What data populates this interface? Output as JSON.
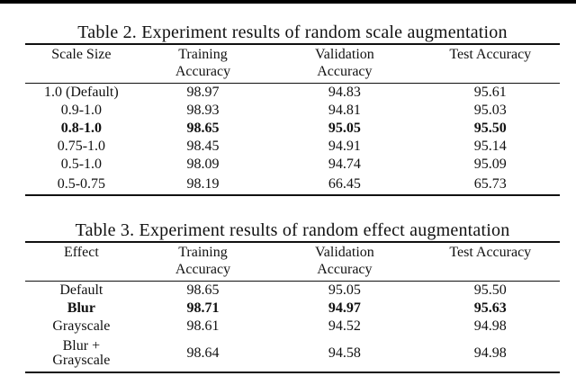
{
  "page": {
    "background_color": "#ffffff",
    "text_color": "#111111",
    "rule_color": "#111111",
    "top_bar_color": "#000000"
  },
  "table2": {
    "title": "Table 2. Experiment results of random scale augmentation",
    "columns": [
      "Scale Size",
      "Training\nAccuracy",
      "Validation\nAccuracy",
      "Test Accuracy"
    ],
    "rows": [
      {
        "bold": false,
        "cells": [
          "1.0 (Default)",
          "98.97",
          "94.83",
          "95.61"
        ]
      },
      {
        "bold": false,
        "cells": [
          "0.9-1.0",
          "98.93",
          "94.81",
          "95.03"
        ]
      },
      {
        "bold": true,
        "cells": [
          "0.8-1.0",
          "98.65",
          "95.05",
          "95.50"
        ]
      },
      {
        "bold": false,
        "cells": [
          "0.75-1.0",
          "98.45",
          "94.91",
          "95.14"
        ]
      },
      {
        "bold": false,
        "cells": [
          "0.5-1.0",
          "98.09",
          "94.74",
          "95.09"
        ]
      },
      {
        "bold": false,
        "cells": [
          "0.5-0.75",
          "98.19",
          "66.45",
          "65.73"
        ]
      }
    ]
  },
  "table3": {
    "title": "Table 3. Experiment results of random effect augmentation",
    "columns": [
      "Effect",
      "Training\nAccuracy",
      "Validation\nAccuracy",
      "Test Accuracy"
    ],
    "rows": [
      {
        "bold": false,
        "cells": [
          "Default",
          "98.65",
          "95.05",
          "95.50"
        ]
      },
      {
        "bold": true,
        "cells": [
          "Blur",
          "98.71",
          "94.97",
          "95.63"
        ]
      },
      {
        "bold": false,
        "cells": [
          "Grayscale",
          "98.61",
          "94.52",
          "94.98"
        ]
      },
      {
        "bold": false,
        "cells": [
          "Blur +\nGrayscale",
          "98.64",
          "94.58",
          "94.98"
        ]
      }
    ]
  }
}
